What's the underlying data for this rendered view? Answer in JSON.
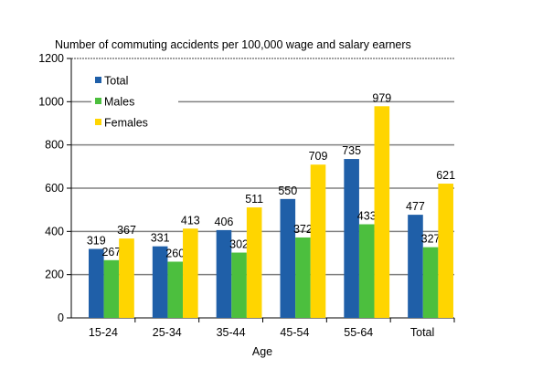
{
  "chart_data": {
    "type": "bar",
    "title": "Number of commuting accidents per 100,000 wage and salary earners",
    "xlabel": "Age",
    "ylabel": "",
    "ylim": [
      0,
      1200
    ],
    "yticks": [
      0,
      200,
      400,
      600,
      800,
      1000,
      1200
    ],
    "grid": true,
    "legend": "top-left",
    "categories": [
      "15-24",
      "25-34",
      "35-44",
      "45-54",
      "55-64",
      "Total"
    ],
    "series": [
      {
        "name": "Total",
        "color": "#1f5fa8",
        "values": [
          319,
          331,
          406,
          550,
          735,
          477
        ]
      },
      {
        "name": "Males",
        "color": "#4cbf3e",
        "values": [
          267,
          260,
          302,
          372,
          433,
          327
        ]
      },
      {
        "name": "Females",
        "color": "#ffd500",
        "values": [
          367,
          413,
          511,
          709,
          979,
          621
        ]
      }
    ]
  }
}
